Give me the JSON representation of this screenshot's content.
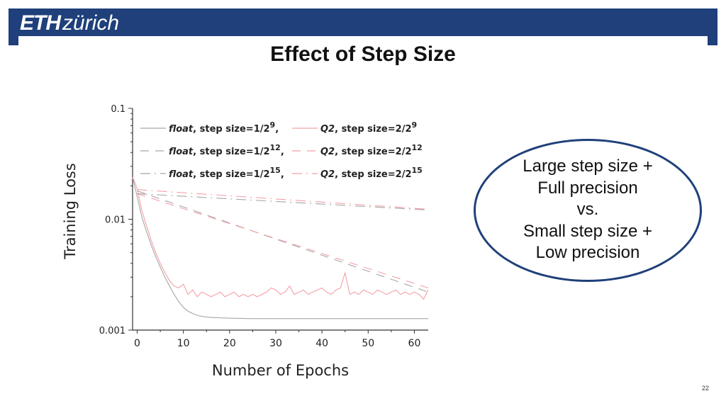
{
  "logo": {
    "eth": "ETH",
    "zurich": "zürich"
  },
  "title": "Effect of Step Size",
  "callout": {
    "lines": [
      "Large step size +",
      "Full precision",
      "vs.",
      "Small step size +",
      "Low precision"
    ]
  },
  "page_number": "22",
  "colors": {
    "brand": "#1f407a",
    "float_series": "#a6a6a6",
    "q2_series": "#f4a0a8"
  },
  "chart_data": {
    "type": "line",
    "xlabel": "Number of Epochs",
    "ylabel": "Training Loss",
    "xlim": [
      -1,
      63
    ],
    "ylim": [
      0.001,
      0.1
    ],
    "yscale": "log",
    "xticks": [
      0,
      10,
      20,
      30,
      40,
      50,
      60
    ],
    "xtick_labels": [
      "0",
      "10",
      "20",
      "30",
      "40",
      "50",
      "60"
    ],
    "yticks": [
      0.001,
      0.01,
      0.1
    ],
    "ytick_labels": [
      "0.001",
      "0.01",
      "0.1"
    ],
    "grid": false,
    "legend_position": "top-left",
    "series": [
      {
        "name": "float, step size=1/2^9",
        "legend": {
          "method": "float",
          "text": ", step size=1/2",
          "exp": "9",
          "tail": ","
        },
        "color": "#a6a6a6",
        "dash": "solid",
        "x": [
          -1,
          0,
          1,
          2,
          3,
          4,
          5,
          6,
          7,
          8,
          9,
          10,
          11,
          12,
          13,
          14,
          15,
          16,
          18,
          20,
          25,
          30,
          35,
          40,
          45,
          50,
          55,
          60,
          63
        ],
        "y": [
          0.024,
          0.016,
          0.0105,
          0.0078,
          0.0059,
          0.0046,
          0.0037,
          0.003,
          0.0025,
          0.0021,
          0.0018,
          0.0016,
          0.00148,
          0.00141,
          0.00136,
          0.00133,
          0.00131,
          0.0013,
          0.00129,
          0.00128,
          0.00127,
          0.00127,
          0.00127,
          0.00127,
          0.00127,
          0.00127,
          0.00127,
          0.00127,
          0.00127
        ]
      },
      {
        "name": "Q2, step size=2/2^9",
        "legend": {
          "method": "Q2",
          "text": ", step size=2/2",
          "exp": "9",
          "tail": ""
        },
        "color": "#f4a0a8",
        "dash": "solid",
        "x": [
          -1,
          0,
          1,
          2,
          3,
          4,
          5,
          6,
          7,
          8,
          9,
          10,
          11,
          12,
          13,
          14,
          15,
          16,
          17,
          18,
          19,
          20,
          21,
          22,
          23,
          24,
          25,
          26,
          27,
          28,
          29,
          30,
          31,
          32,
          33,
          34,
          35,
          36,
          37,
          38,
          39,
          40,
          41,
          42,
          43,
          44,
          45,
          46,
          47,
          48,
          49,
          50,
          51,
          52,
          53,
          54,
          55,
          56,
          57,
          58,
          59,
          60,
          61,
          62,
          63
        ],
        "y": [
          0.024,
          0.019,
          0.012,
          0.0088,
          0.0065,
          0.005,
          0.004,
          0.0033,
          0.0028,
          0.0025,
          0.0024,
          0.0026,
          0.0021,
          0.0023,
          0.002,
          0.0022,
          0.0021,
          0.002,
          0.0021,
          0.0022,
          0.002,
          0.0021,
          0.0022,
          0.002,
          0.0021,
          0.002,
          0.0021,
          0.002,
          0.0021,
          0.0022,
          0.0024,
          0.0023,
          0.0021,
          0.0022,
          0.0025,
          0.0021,
          0.0022,
          0.0023,
          0.0021,
          0.0022,
          0.0023,
          0.0024,
          0.0022,
          0.0021,
          0.0023,
          0.0024,
          0.0033,
          0.0021,
          0.0022,
          0.0021,
          0.0023,
          0.0022,
          0.0021,
          0.0023,
          0.0022,
          0.0021,
          0.0022,
          0.0023,
          0.0021,
          0.0022,
          0.0021,
          0.0022,
          0.0021,
          0.0019,
          0.0023
        ]
      },
      {
        "name": "float, step size=1/2^12",
        "legend": {
          "method": "float",
          "text": ", step size=1/2",
          "exp": "12",
          "tail": ","
        },
        "color": "#a6a6a6",
        "dash": "long-dash",
        "x": [
          0,
          63
        ],
        "y": [
          0.018,
          0.0022
        ]
      },
      {
        "name": "Q2, step size=2/2^12",
        "legend": {
          "method": "Q2",
          "text": ", step size=2/2",
          "exp": "12",
          "tail": ""
        },
        "color": "#f4a0a8",
        "dash": "long-dash",
        "x": [
          0,
          63
        ],
        "y": [
          0.017,
          0.0024
        ]
      },
      {
        "name": "float, step size=1/2^15",
        "legend": {
          "method": "float",
          "text": ", step size=1/2",
          "exp": "15",
          "tail": ","
        },
        "color": "#a6a6a6",
        "dash": "dash-dot",
        "x": [
          0,
          63
        ],
        "y": [
          0.017,
          0.0121
        ]
      },
      {
        "name": "Q2, step size=2/2^15",
        "legend": {
          "method": "Q2",
          "text": ", step size=2/2",
          "exp": "15",
          "tail": ""
        },
        "color": "#f4a0a8",
        "dash": "dash-dot",
        "x": [
          0,
          63
        ],
        "y": [
          0.0185,
          0.0123
        ]
      }
    ]
  }
}
